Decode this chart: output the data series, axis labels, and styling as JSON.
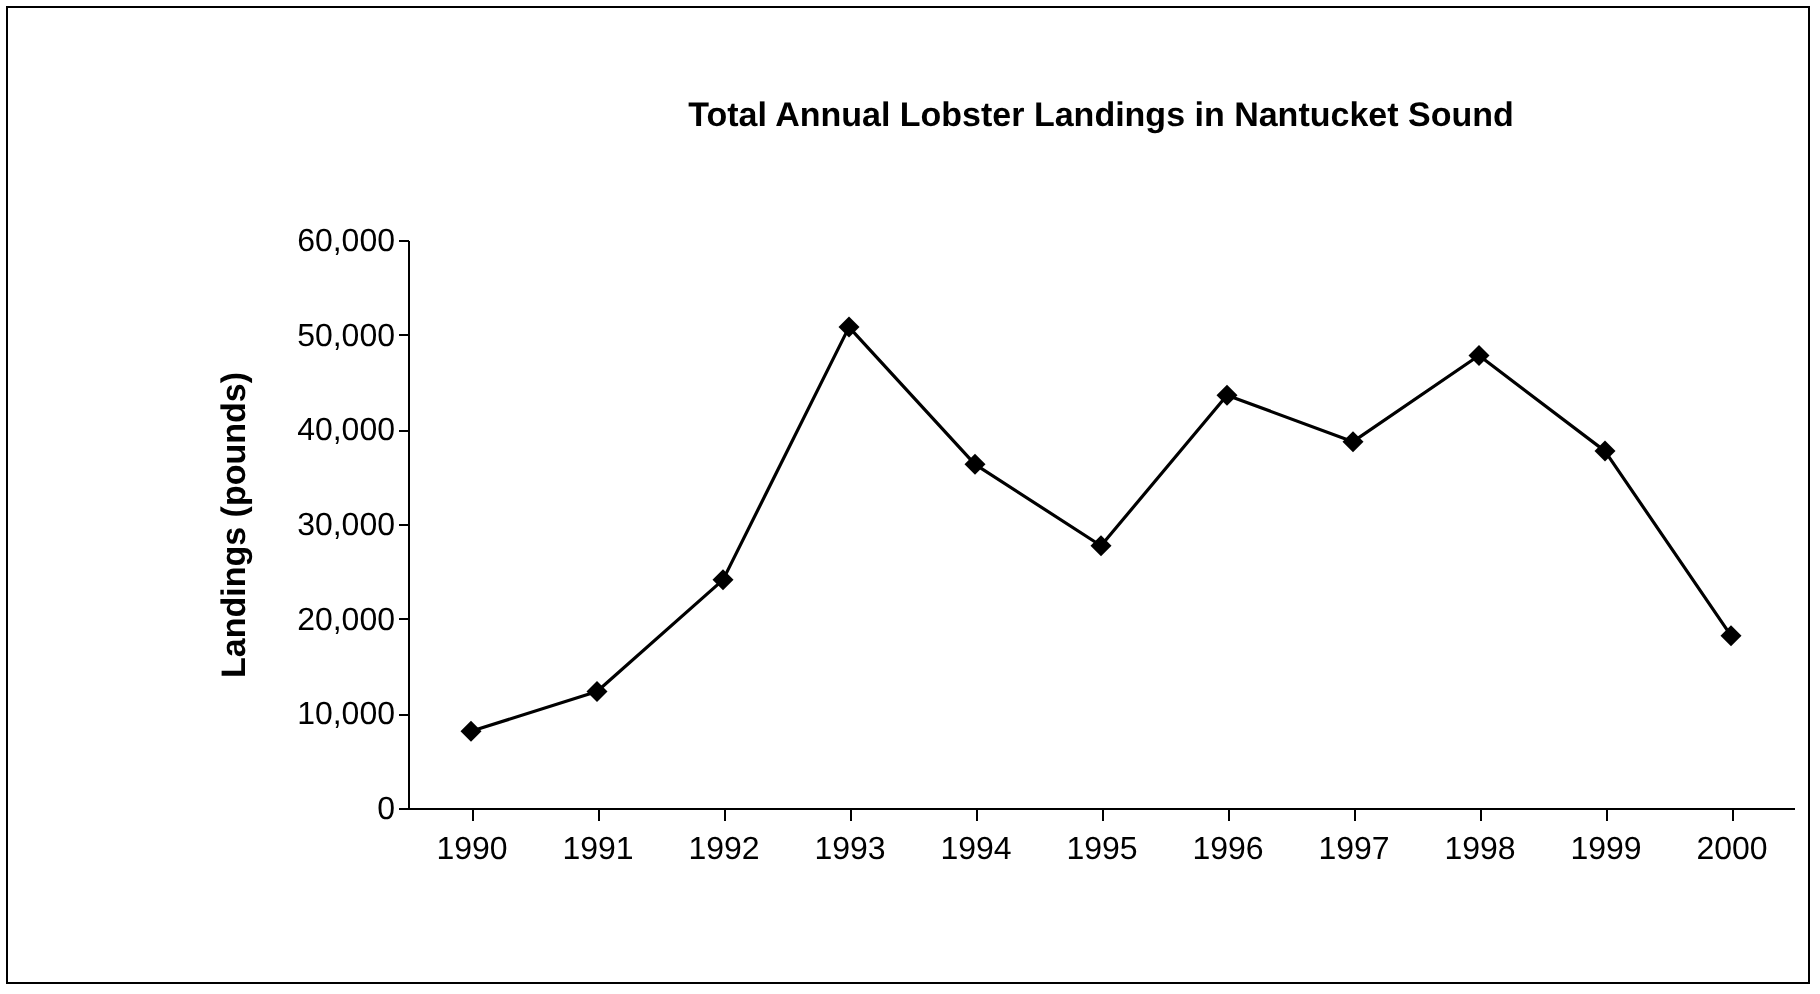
{
  "chart_data": {
    "type": "line",
    "title": "Total Annual Lobster Landings in Nantucket Sound",
    "ylabel": "Landings (pounds)",
    "categories": [
      "1990",
      "1991",
      "1992",
      "1993",
      "1994",
      "1995",
      "1996",
      "1997",
      "1998",
      "1999",
      "2000"
    ],
    "series": [
      {
        "color": "#000000",
        "values": [
          8100,
          12300,
          24100,
          50800,
          36300,
          27700,
          43600,
          38700,
          47800,
          37700,
          18200
        ]
      }
    ],
    "ylim": [
      0,
      60000
    ],
    "yticks": [
      0,
      {
        "value": 10000,
        "label": "10,000"
      },
      {
        "value": 20000,
        "label": "20,000"
      },
      {
        "value": 30000,
        "label": "30,000"
      },
      {
        "value": 40000,
        "label": "40,000"
      },
      {
        "value": 50000,
        "label": "50,000"
      },
      {
        "value": 60000,
        "label": "60,000"
      }
    ],
    "grid": false,
    "legend": false,
    "marker": "diamond",
    "line_style": "solid"
  }
}
